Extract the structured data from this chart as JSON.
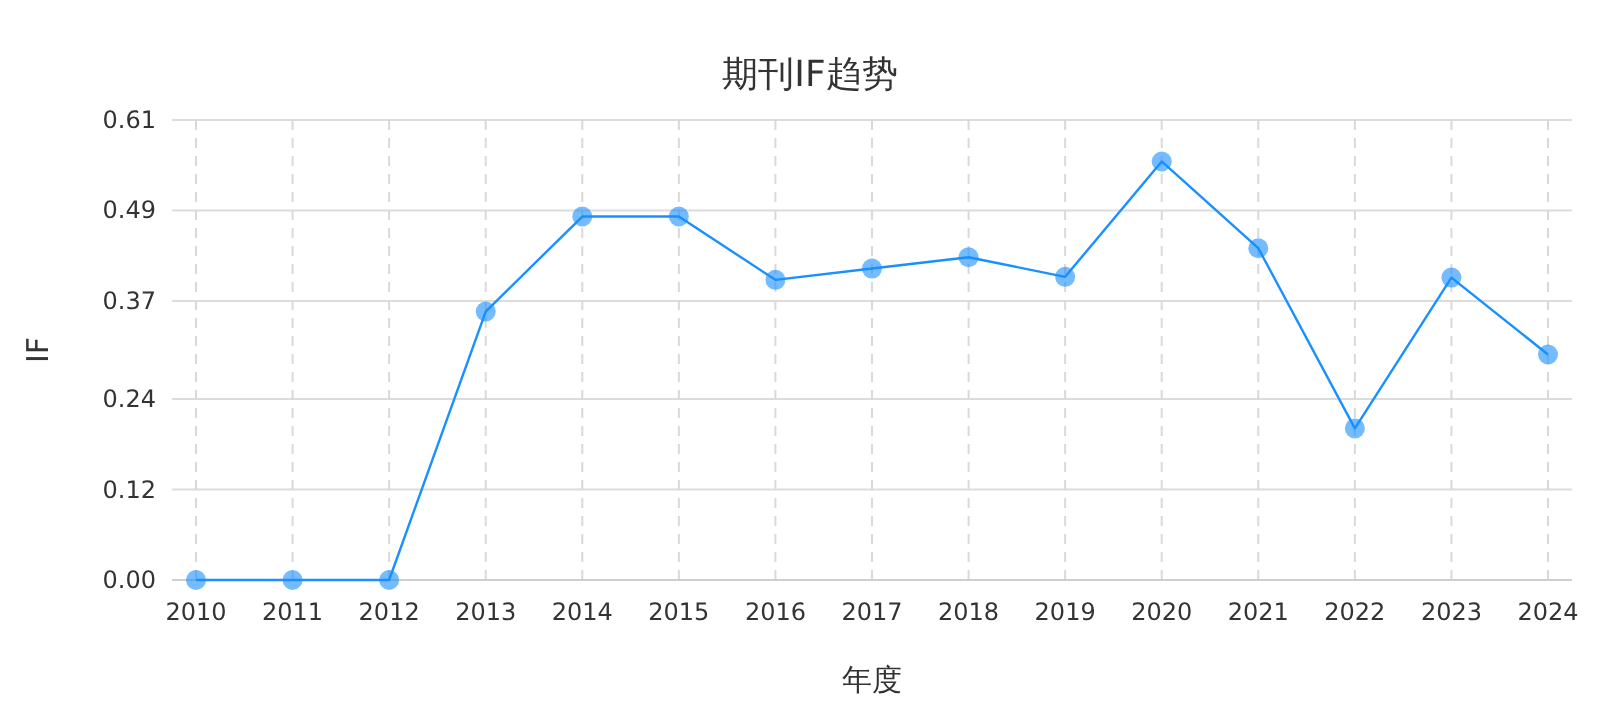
{
  "chart_data": {
    "type": "line",
    "title": "期刊IF趋势",
    "xlabel": "年度",
    "ylabel": "IF",
    "categories": [
      "2010",
      "2011",
      "2012",
      "2013",
      "2014",
      "2015",
      "2016",
      "2017",
      "2018",
      "2019",
      "2020",
      "2021",
      "2022",
      "2023",
      "2024"
    ],
    "series": [
      {
        "color": "#1890ff",
        "values": [
          0,
          0,
          0,
          0.356,
          0.482,
          0.482,
          0.398,
          0.413,
          0.428,
          0.402,
          0.555,
          0.44,
          0.201,
          0.401,
          0.299
        ]
      }
    ],
    "ylim": [
      0,
      0.61
    ],
    "yticks": [
      {
        "value": 0,
        "label": "0.00"
      },
      0.12,
      0.24,
      0.37,
      0.49,
      0.61
    ],
    "grid": true,
    "marker": "circle",
    "line_style": "solid"
  }
}
